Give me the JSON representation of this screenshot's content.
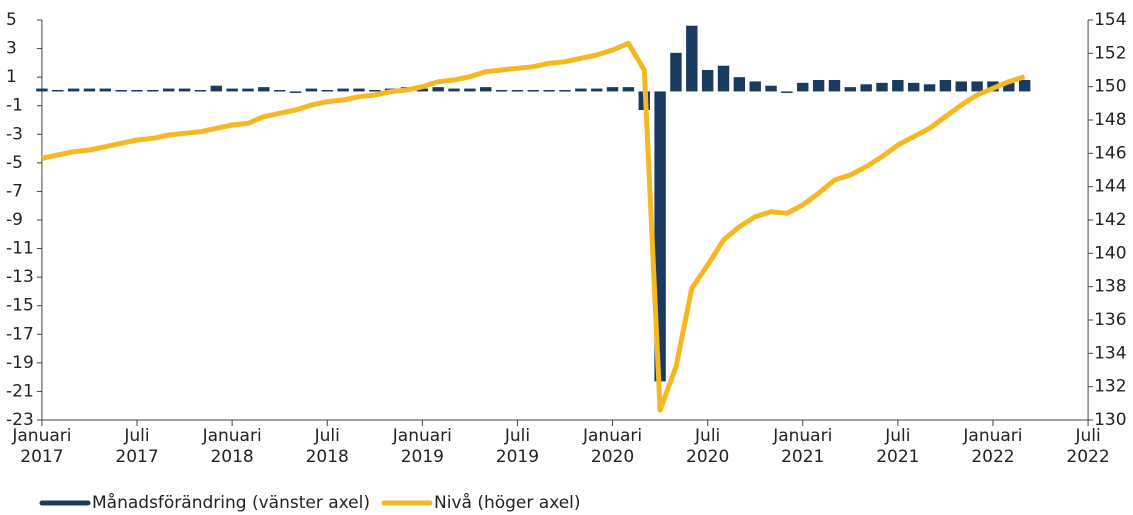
{
  "chart_data": {
    "type": "bar_line",
    "categories": [
      "Januari 2017",
      null,
      null,
      null,
      null,
      null,
      "Juli 2017",
      null,
      null,
      null,
      null,
      null,
      "Januari 2018",
      null,
      null,
      null,
      null,
      null,
      "Juli 2018",
      null,
      null,
      null,
      null,
      null,
      "Januari 2019",
      null,
      null,
      null,
      null,
      null,
      "Juli 2019",
      null,
      null,
      null,
      null,
      null,
      "Januari 2020",
      null,
      null,
      null,
      null,
      null,
      "Juli 2020",
      null,
      null,
      null,
      null,
      null,
      "Januari 2021",
      null,
      null,
      null,
      null,
      null,
      "Juli 2021",
      null,
      null,
      null,
      null,
      null,
      "Januari 2022",
      null,
      null,
      null,
      null,
      null,
      "Juli 2022"
    ],
    "series": [
      {
        "name": "Månadsförändring (vänster axel)",
        "type": "bar",
        "color": "#1b3a5f",
        "axis": "y",
        "values": [
          0.2,
          0.1,
          0.2,
          0.2,
          0.2,
          0.1,
          0.1,
          0.1,
          0.2,
          0.2,
          0.1,
          0.4,
          0.2,
          0.2,
          0.3,
          0.1,
          0.0,
          0.2,
          0.1,
          0.2,
          0.2,
          0.1,
          0.2,
          0.3,
          0.2,
          0.3,
          0.2,
          0.2,
          0.3,
          0.1,
          0.1,
          0.1,
          0.1,
          0.1,
          0.2,
          0.2,
          0.3,
          0.3,
          -1.3,
          -20.3,
          2.7,
          4.6,
          1.5,
          1.8,
          1.0,
          0.7,
          0.4,
          -0.1,
          0.6,
          0.8,
          0.8,
          0.3,
          0.5,
          0.6,
          0.8,
          0.6,
          0.5,
          0.8,
          0.7,
          0.7,
          0.7,
          0.6,
          0.8,
          null,
          null,
          null,
          null
        ]
      },
      {
        "name": "Nivå (höger axel)",
        "type": "line",
        "color": "#f5b823",
        "axis": "y2",
        "values": [
          145.7,
          145.9,
          146.1,
          146.2,
          146.4,
          146.6,
          146.8,
          146.9,
          147.1,
          147.2,
          147.3,
          147.5,
          147.7,
          147.8,
          148.2,
          148.4,
          148.6,
          148.9,
          149.1,
          149.2,
          149.4,
          149.5,
          149.7,
          149.8,
          150.0,
          150.3,
          150.4,
          150.6,
          150.9,
          151.0,
          151.1,
          151.2,
          151.4,
          151.5,
          151.7,
          151.9,
          152.2,
          152.6,
          151.0,
          130.6,
          133.2,
          137.9,
          139.3,
          140.8,
          141.6,
          142.2,
          142.5,
          142.4,
          142.9,
          143.6,
          144.4,
          144.7,
          145.2,
          145.8,
          146.5,
          147.0,
          147.5,
          148.2,
          148.9,
          149.5,
          149.9,
          150.3,
          150.6,
          null,
          null,
          null,
          null
        ]
      }
    ],
    "ylim": [
      -23,
      5
    ],
    "yticks": [
      -23,
      -21,
      -19,
      -17,
      -15,
      -13,
      -11,
      -9,
      -7,
      -5,
      -3,
      -1,
      1,
      3,
      5
    ],
    "y2lim": [
      130,
      154
    ],
    "y2ticks": [
      130,
      132,
      134,
      136,
      138,
      140,
      142,
      144,
      146,
      148,
      150,
      152,
      154
    ],
    "legend": "bottom-left"
  }
}
